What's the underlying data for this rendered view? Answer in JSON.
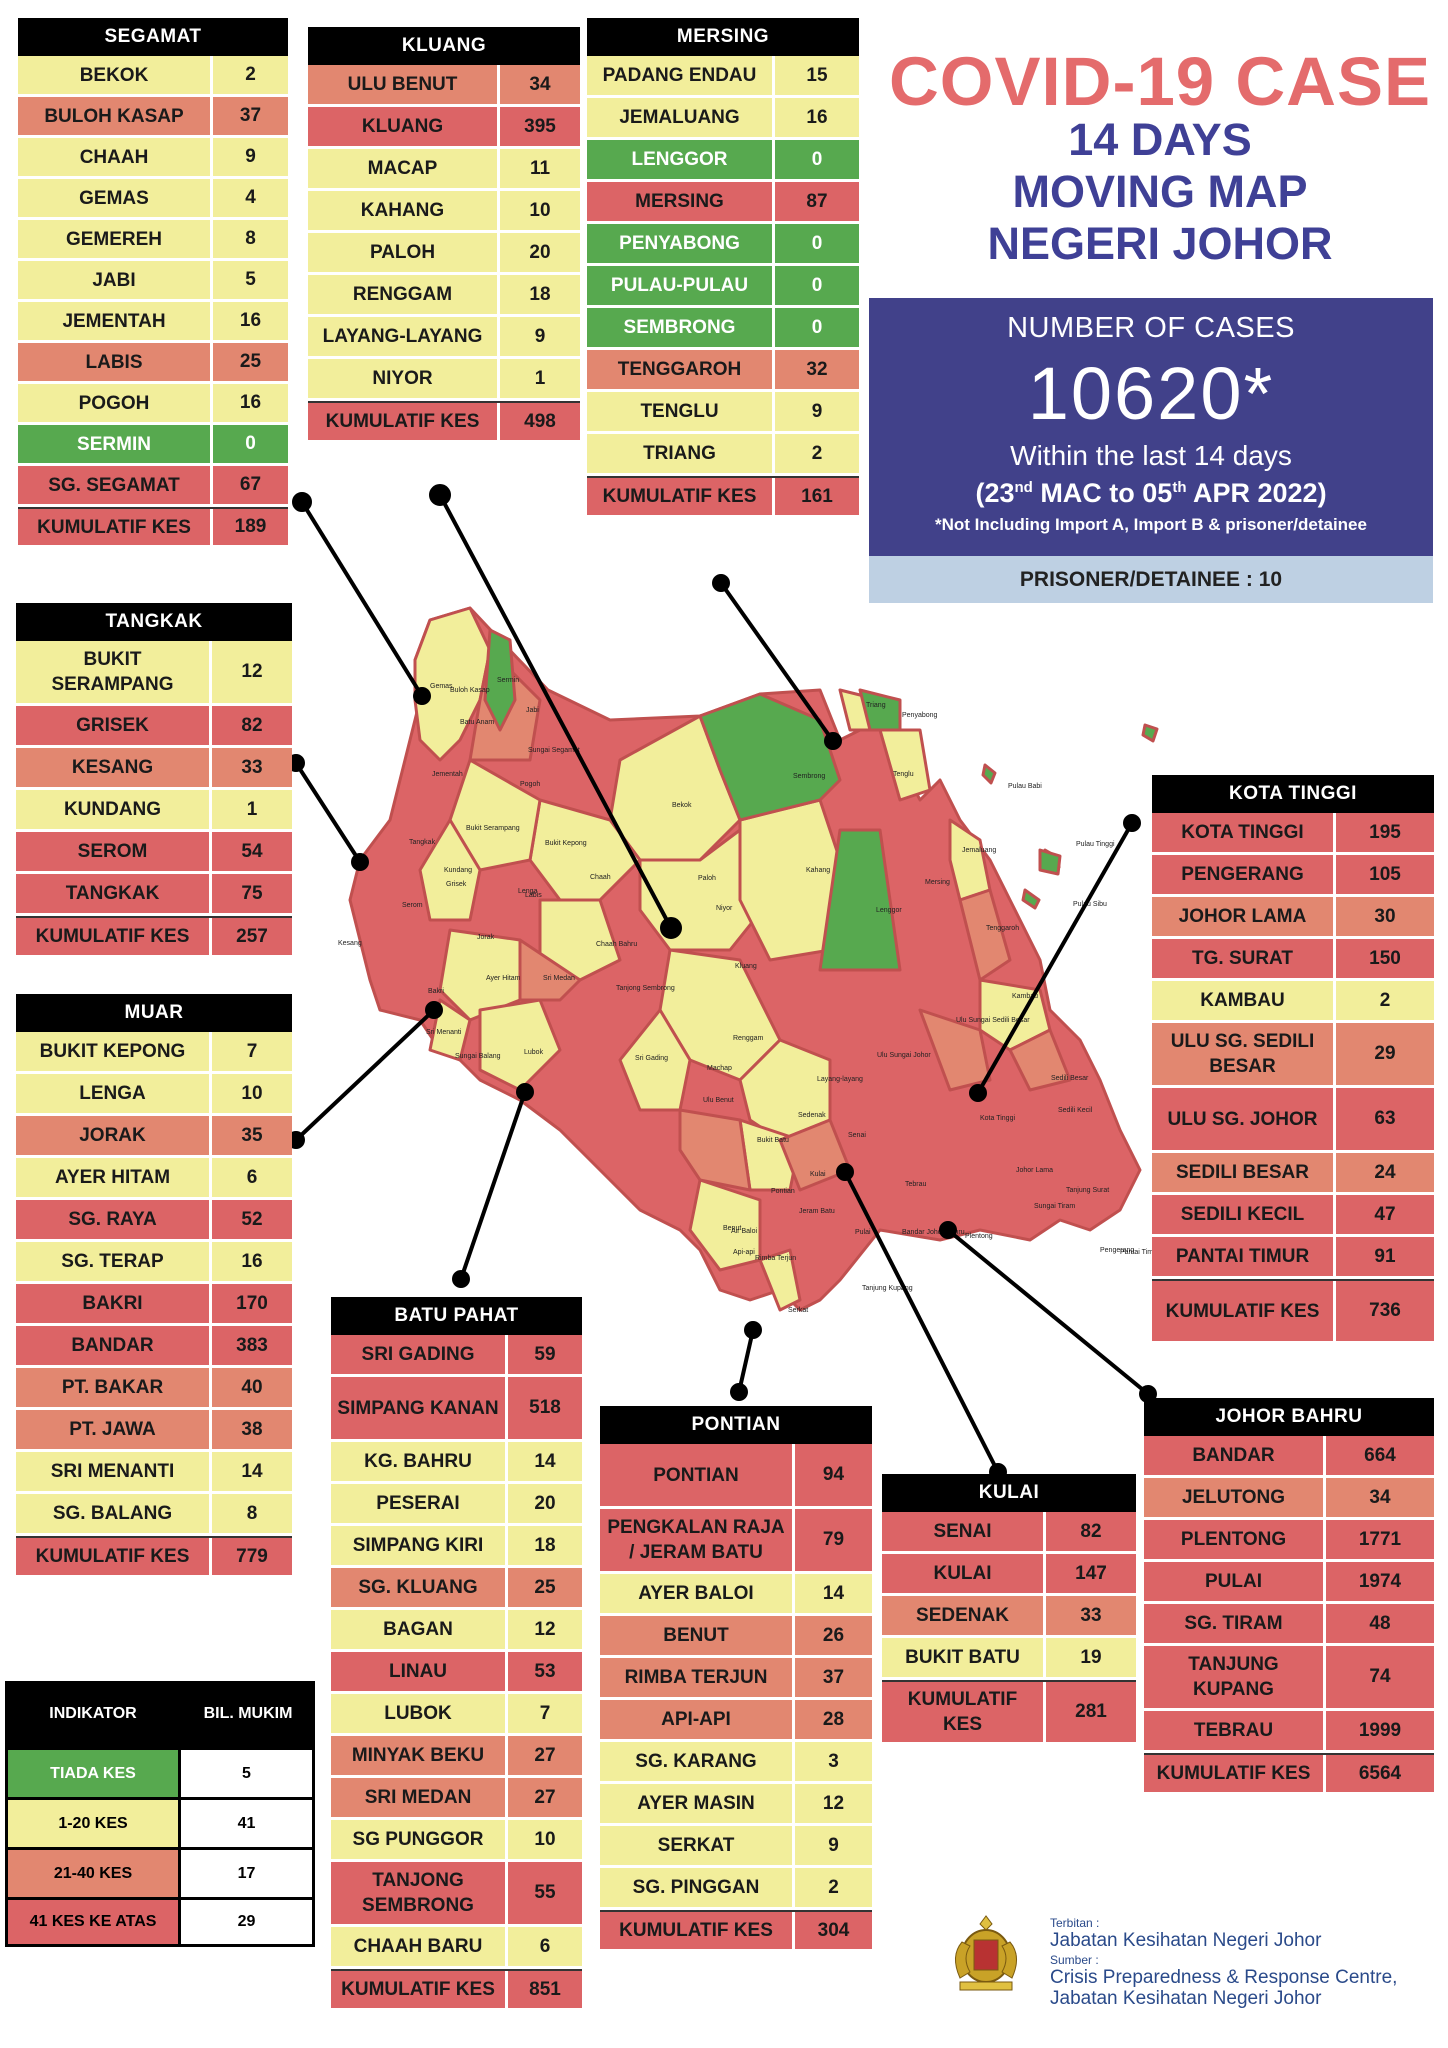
{
  "title": {
    "line1": "COVID-19 CASE",
    "line2": "14 DAYS",
    "line3": "MOVING MAP",
    "line4": "NEGERI JOHOR"
  },
  "summary": {
    "label": "NUMBER OF CASES",
    "total": "10620*",
    "within": "Within the last 14 days",
    "range_start": "23",
    "range_start_sup": "nd",
    "range_mid": " MAC to 05",
    "range_end_sup": "th",
    "range_end": " APR 2022)",
    "range_open": "(",
    "note": "*Not Including Import A, Import B & prisoner/detainee",
    "prisoner": "PRISONER/DETAINEE : 10"
  },
  "colors": {
    "green": "#57a94f",
    "yellow": "#f2ee9b",
    "orange": "#e28770",
    "red": "#dc6466",
    "title": "#e46b6c",
    "navy": "#41418a"
  },
  "districts": {
    "segamat": {
      "name": "SEGAMAT",
      "rows": [
        {
          "n": "BEKOK",
          "v": "2",
          "c": "y"
        },
        {
          "n": "BULOH KASAP",
          "v": "37",
          "c": "o"
        },
        {
          "n": "CHAAH",
          "v": "9",
          "c": "y"
        },
        {
          "n": "GEMAS",
          "v": "4",
          "c": "y"
        },
        {
          "n": "GEMEREH",
          "v": "8",
          "c": "y"
        },
        {
          "n": "JABI",
          "v": "5",
          "c": "y"
        },
        {
          "n": "JEMENTAH",
          "v": "16",
          "c": "y"
        },
        {
          "n": "LABIS",
          "v": "25",
          "c": "o"
        },
        {
          "n": "POGOH",
          "v": "16",
          "c": "y"
        },
        {
          "n": "SERMIN",
          "v": "0",
          "c": "g"
        },
        {
          "n": "SG. SEGAMAT",
          "v": "67",
          "c": "r"
        },
        {
          "n": "KUMULATIF KES",
          "v": "189",
          "c": "r",
          "total": true
        }
      ]
    },
    "kluang": {
      "name": "KLUANG",
      "rows": [
        {
          "n": "ULU BENUT",
          "v": "34",
          "c": "o"
        },
        {
          "n": "KLUANG",
          "v": "395",
          "c": "r"
        },
        {
          "n": "MACAP",
          "v": "11",
          "c": "y"
        },
        {
          "n": "KAHANG",
          "v": "10",
          "c": "y"
        },
        {
          "n": "PALOH",
          "v": "20",
          "c": "y"
        },
        {
          "n": "RENGGAM",
          "v": "18",
          "c": "y"
        },
        {
          "n": "LAYANG-LAYANG",
          "v": "9",
          "c": "y"
        },
        {
          "n": "NIYOR",
          "v": "1",
          "c": "y"
        },
        {
          "n": "KUMULATIF KES",
          "v": "498",
          "c": "r",
          "total": true
        }
      ]
    },
    "mersing": {
      "name": "MERSING",
      "rows": [
        {
          "n": "PADANG ENDAU",
          "v": "15",
          "c": "y"
        },
        {
          "n": "JEMALUANG",
          "v": "16",
          "c": "y"
        },
        {
          "n": "LENGGOR",
          "v": "0",
          "c": "g"
        },
        {
          "n": "MERSING",
          "v": "87",
          "c": "r"
        },
        {
          "n": "PENYABONG",
          "v": "0",
          "c": "g"
        },
        {
          "n": "PULAU-PULAU",
          "v": "0",
          "c": "g"
        },
        {
          "n": "SEMBRONG",
          "v": "0",
          "c": "g"
        },
        {
          "n": "TENGGAROH",
          "v": "32",
          "c": "o"
        },
        {
          "n": "TENGLU",
          "v": "9",
          "c": "y"
        },
        {
          "n": "TRIANG",
          "v": "2",
          "c": "y"
        },
        {
          "n": "KUMULATIF KES",
          "v": "161",
          "c": "r",
          "total": true
        }
      ]
    },
    "tangkak": {
      "name": "TANGKAK",
      "rows": [
        {
          "n": "BUKIT SERAMPANG",
          "v": "12",
          "c": "y",
          "tall": true
        },
        {
          "n": "GRISEK",
          "v": "82",
          "c": "r"
        },
        {
          "n": "KESANG",
          "v": "33",
          "c": "o"
        },
        {
          "n": "KUNDANG",
          "v": "1",
          "c": "y"
        },
        {
          "n": "SEROM",
          "v": "54",
          "c": "r"
        },
        {
          "n": "TANGKAK",
          "v": "75",
          "c": "r"
        },
        {
          "n": "KUMULATIF KES",
          "v": "257",
          "c": "r",
          "total": true
        }
      ]
    },
    "muar": {
      "name": "MUAR",
      "rows": [
        {
          "n": "BUKIT KEPONG",
          "v": "7",
          "c": "y"
        },
        {
          "n": "LENGA",
          "v": "10",
          "c": "y"
        },
        {
          "n": "JORAK",
          "v": "35",
          "c": "o"
        },
        {
          "n": "AYER HITAM",
          "v": "6",
          "c": "y"
        },
        {
          "n": "SG. RAYA",
          "v": "52",
          "c": "r"
        },
        {
          "n": "SG. TERAP",
          "v": "16",
          "c": "y"
        },
        {
          "n": "BAKRI",
          "v": "170",
          "c": "r"
        },
        {
          "n": "BANDAR",
          "v": "383",
          "c": "r"
        },
        {
          "n": "PT. BAKAR",
          "v": "40",
          "c": "o"
        },
        {
          "n": "PT. JAWA",
          "v": "38",
          "c": "o"
        },
        {
          "n": "SRI MENANTI",
          "v": "14",
          "c": "y"
        },
        {
          "n": "SG. BALANG",
          "v": "8",
          "c": "y"
        },
        {
          "n": "KUMULATIF KES",
          "v": "779",
          "c": "r",
          "total": true
        }
      ]
    },
    "kota_tinggi": {
      "name": "KOTA TINGGI",
      "rows": [
        {
          "n": "KOTA TINGGI",
          "v": "195",
          "c": "r"
        },
        {
          "n": "PENGERANG",
          "v": "105",
          "c": "r"
        },
        {
          "n": "JOHOR LAMA",
          "v": "30",
          "c": "o"
        },
        {
          "n": "TG. SURAT",
          "v": "150",
          "c": "r"
        },
        {
          "n": "KAMBAU",
          "v": "2",
          "c": "y"
        },
        {
          "n": "ULU SG. SEDILI BESAR",
          "v": "29",
          "c": "o",
          "tall": true
        },
        {
          "n": "ULU  SG. JOHOR",
          "v": "63",
          "c": "r",
          "tall": true
        },
        {
          "n": "SEDILI BESAR",
          "v": "24",
          "c": "o"
        },
        {
          "n": "SEDILI KECIL",
          "v": "47",
          "c": "r"
        },
        {
          "n": "PANTAI TIMUR",
          "v": "91",
          "c": "r"
        },
        {
          "n": "KUMULATIF KES",
          "v": "736",
          "c": "r",
          "total": true,
          "tall": true
        }
      ]
    },
    "batu_pahat": {
      "name": "BATU PAHAT",
      "rows": [
        {
          "n": "SRI GADING",
          "v": "59",
          "c": "r"
        },
        {
          "n": "SIMPANG KANAN",
          "v": "518",
          "c": "r",
          "tall": true
        },
        {
          "n": "KG. BAHRU",
          "v": "14",
          "c": "y"
        },
        {
          "n": "PESERAI",
          "v": "20",
          "c": "y"
        },
        {
          "n": "SIMPANG KIRI",
          "v": "18",
          "c": "y"
        },
        {
          "n": "SG. KLUANG",
          "v": "25",
          "c": "o"
        },
        {
          "n": "BAGAN",
          "v": "12",
          "c": "y"
        },
        {
          "n": "LINAU",
          "v": "53",
          "c": "r"
        },
        {
          "n": "LUBOK",
          "v": "7",
          "c": "y"
        },
        {
          "n": "MINYAK BEKU",
          "v": "27",
          "c": "o"
        },
        {
          "n": "SRI MEDAN",
          "v": "27",
          "c": "o"
        },
        {
          "n": "SG PUNGGOR",
          "v": "10",
          "c": "y"
        },
        {
          "n": "TANJONG SEMBRONG",
          "v": "55",
          "c": "r",
          "tall": true
        },
        {
          "n": "CHAAH BARU",
          "v": "6",
          "c": "y"
        },
        {
          "n": "KUMULATIF KES",
          "v": "851",
          "c": "r",
          "total": true
        }
      ]
    },
    "pontian": {
      "name": "PONTIAN",
      "rows": [
        {
          "n": "PONTIAN",
          "v": "94",
          "c": "r",
          "tall": true
        },
        {
          "n": "PENGKALAN RAJA / JERAM BATU",
          "v": "79",
          "c": "r",
          "tall": true
        },
        {
          "n": "AYER BALOI",
          "v": "14",
          "c": "y"
        },
        {
          "n": "BENUT",
          "v": "26",
          "c": "o"
        },
        {
          "n": "RIMBA TERJUN",
          "v": "37",
          "c": "o"
        },
        {
          "n": "API-API",
          "v": "28",
          "c": "o"
        },
        {
          "n": "SG. KARANG",
          "v": "3",
          "c": "y"
        },
        {
          "n": "AYER MASIN",
          "v": "12",
          "c": "y"
        },
        {
          "n": "SERKAT",
          "v": "9",
          "c": "y"
        },
        {
          "n": "SG. PINGGAN",
          "v": "2",
          "c": "y"
        },
        {
          "n": "KUMULATIF KES",
          "v": "304",
          "c": "r",
          "total": true
        }
      ]
    },
    "kulai": {
      "name": "KULAI",
      "rows": [
        {
          "n": "SENAI",
          "v": "82",
          "c": "r"
        },
        {
          "n": "KULAI",
          "v": "147",
          "c": "r"
        },
        {
          "n": "SEDENAK",
          "v": "33",
          "c": "o"
        },
        {
          "n": "BUKIT BATU",
          "v": "19",
          "c": "y"
        },
        {
          "n": "KUMULATIF KES",
          "v": "281",
          "c": "r",
          "total": true,
          "tall": true
        }
      ]
    },
    "johor_bahru": {
      "name": "JOHOR BAHRU",
      "rows": [
        {
          "n": "BANDAR",
          "v": "664",
          "c": "r"
        },
        {
          "n": "JELUTONG",
          "v": "34",
          "c": "o"
        },
        {
          "n": "PLENTONG",
          "v": "1771",
          "c": "r"
        },
        {
          "n": "PULAI",
          "v": "1974",
          "c": "r"
        },
        {
          "n": "SG. TIRAM",
          "v": "48",
          "c": "r"
        },
        {
          "n": "TANJUNG KUPANG",
          "v": "74",
          "c": "r",
          "tall": true
        },
        {
          "n": "TEBRAU",
          "v": "1999",
          "c": "r"
        },
        {
          "n": "KUMULATIF KES",
          "v": "6564",
          "c": "r",
          "total": true
        }
      ]
    }
  },
  "legend": {
    "h1": "INDIKATOR",
    "h2": "BIL. MUKIM",
    "rows": [
      {
        "k": "TIADA KES",
        "v": "5",
        "c": "g"
      },
      {
        "k": "1-20 KES",
        "v": "41",
        "c": "y"
      },
      {
        "k": "21-40 KES",
        "v": "17",
        "c": "o"
      },
      {
        "k": "41 KES KE ATAS",
        "v": "29",
        "c": "r"
      }
    ]
  },
  "credits": {
    "published_label": "Terbitan :",
    "published_by": "Jabatan Kesihatan Negeri Johor",
    "source_label": "Sumber :",
    "source_line1": "Crisis Preparedness & Response Centre,",
    "source_line2": "Jabatan Kesihatan Negeri Johor"
  },
  "map_labels": [
    "Gemas",
    "Buloh Kasap",
    "Sermin",
    "Jabi",
    "Batu Anam",
    "Sungai Segamat",
    "Jementah",
    "Pogoh",
    "Bukit Serampang",
    "Bukit Kepong",
    "Bekok",
    "Sembrong",
    "Triang",
    "Penyabong",
    "Tenglu",
    "Pulau Babi",
    "Pulau Tinggi",
    "Pulau Sibu",
    "Jemaluang",
    "Lenggor",
    "Mersing",
    "Tenggaroh",
    "Kahang",
    "Paloh",
    "Niyor",
    "Chaah",
    "Labis",
    "Lenga",
    "Grisek",
    "Tangkak",
    "Kundang",
    "Serom",
    "Kesang",
    "Jorak",
    "Chaah Bahru",
    "Kluang",
    "Renggam",
    "Ayer Hitam",
    "Sri Medan",
    "Tanjong Sembrong",
    "Bakri",
    "Sri Menanti",
    "Sungai Balang",
    "Lubok",
    "Sri Gading",
    "Machap",
    "Ulu Benut",
    "Layang-layang",
    "Sedenak",
    "Bukit Batu",
    "Kulai",
    "Senai",
    "Ulu Sungai Johor",
    "Ulu Sungai Sedili Besar",
    "Kambau",
    "Sedili Besar",
    "Kota Tinggi",
    "Sedili Kecil",
    "Johor Lama",
    "Tanjung Surat",
    "Pengerang",
    "Pantai Timur",
    "Tebrau",
    "Plentong",
    "Bandar Johor Bahru",
    "Pulai",
    "Jeram Batu",
    "Pontian",
    "Rimba Terjun",
    "Air Baloi",
    "Benut",
    "Api-api",
    "Serkat",
    "Tanjung Kupang",
    "Sungai Tiram"
  ]
}
